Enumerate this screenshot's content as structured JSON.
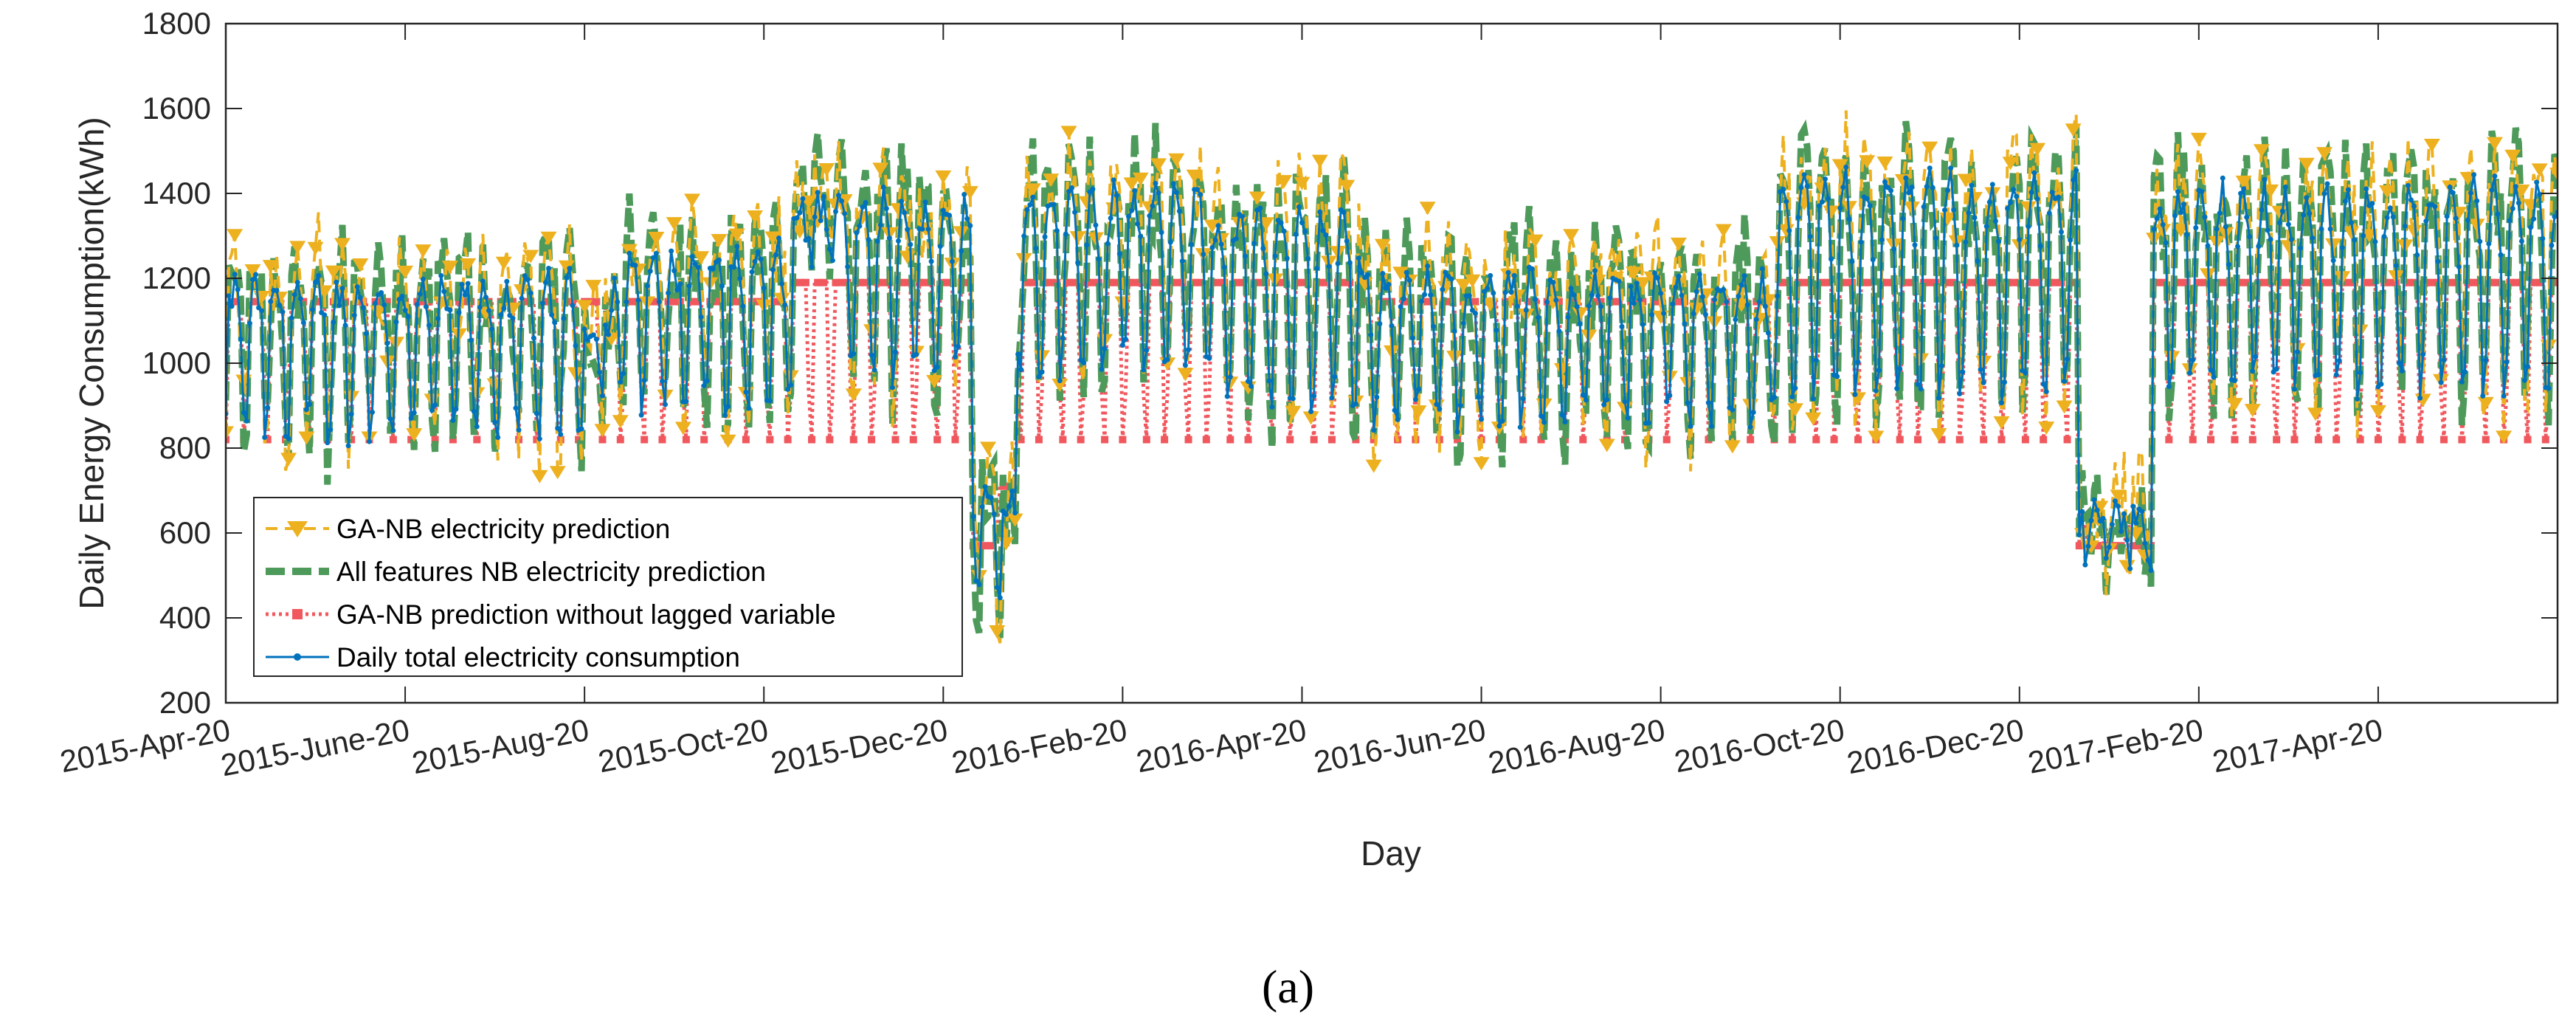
{
  "caption": "(a)",
  "chart_data": {
    "type": "line",
    "xlabel": "Day",
    "ylabel": "Daily Energy Consumption(kWh)",
    "ylim": [
      200,
      1800
    ],
    "yticks": [
      200,
      400,
      600,
      800,
      1000,
      1200,
      1400,
      1600,
      1800
    ],
    "xticks": [
      "2015-Apr-20",
      "2015-June-20",
      "2015-Aug-20",
      "2015-Oct-20",
      "2015-Dec-20",
      "2016-Feb-20",
      "2016-Apr-20",
      "2016-Jun-20",
      "2016-Aug-20",
      "2016-Oct-20",
      "2016-Dec-20",
      "2017-Feb-20",
      "2017-Apr-20"
    ],
    "x_range_days": [
      0,
      780
    ],
    "tick_interval_days": 60,
    "legend_position": "lower-left",
    "colors": {
      "ga_nb": "#EDB120",
      "all_features": "#4D9A5A",
      "no_lag": "#F0585E",
      "actual": "#0072BD"
    },
    "series": [
      {
        "key": "ga_nb",
        "name": "GA-NB electricity prediction",
        "style": "dash-triangle"
      },
      {
        "key": "all_features",
        "name": "All features NB electricity prediction",
        "style": "dash-thick"
      },
      {
        "key": "no_lag",
        "name": "GA-NB prediction without lagged variable",
        "style": "dotted-square"
      },
      {
        "key": "actual",
        "name": "Daily total electricity consumption",
        "style": "solid-dot"
      }
    ],
    "profile": {
      "note": "Approximate weekly-cycle envelopes (weekday peak / weekend trough in kWh) for segments of days",
      "segments": [
        {
          "days": [
            0,
            120
          ],
          "peak": 1180,
          "trough": 850
        },
        {
          "days": [
            120,
            130
          ],
          "peak": 1100,
          "trough": 960
        },
        {
          "days": [
            130,
            190
          ],
          "peak": 1250,
          "trough": 920
        },
        {
          "days": [
            190,
            205
          ],
          "peak": 1370,
          "trough": 1250
        },
        {
          "days": [
            205,
            250
          ],
          "peak": 1380,
          "trough": 980
        },
        {
          "days": [
            250,
            265
          ],
          "peak": 700,
          "trough": 470
        },
        {
          "days": [
            265,
            330
          ],
          "peak": 1400,
          "trough": 1000
        },
        {
          "days": [
            330,
            380
          ],
          "peak": 1350,
          "trough": 920
        },
        {
          "days": [
            380,
            520
          ],
          "peak": 1200,
          "trough": 880
        },
        {
          "days": [
            520,
            620
          ],
          "peak": 1420,
          "trough": 950
        },
        {
          "days": [
            620,
            645
          ],
          "peak": 650,
          "trough": 540
        },
        {
          "days": [
            645,
            780
          ],
          "peak": 1400,
          "trough": 960
        }
      ]
    }
  }
}
